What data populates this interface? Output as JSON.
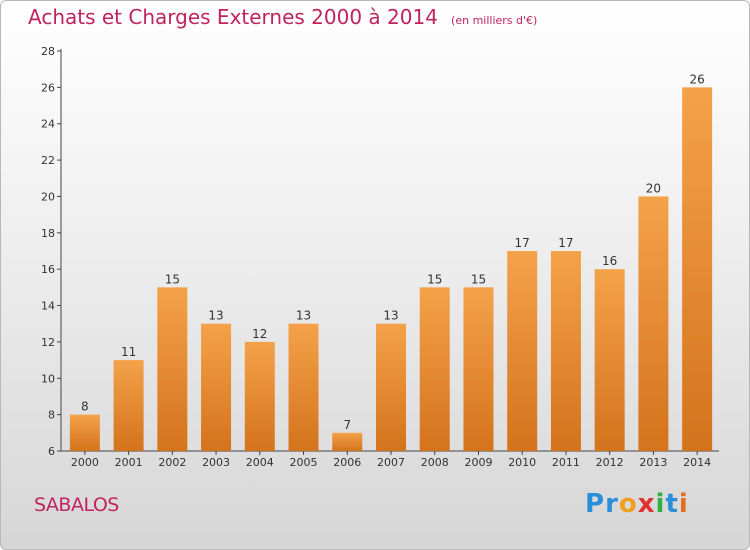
{
  "title": "Achats et Charges Externes 2000 à 2014",
  "subtitle": "(en milliers d'€)",
  "town": "SABALOS",
  "logo": {
    "letters": [
      "P",
      "r",
      "o",
      "x",
      "i",
      "t",
      "i"
    ],
    "colors": [
      "#2a8fd8",
      "#2a8fd8",
      "#f0a020",
      "#e03030",
      "#30b040",
      "#2a8fd8",
      "#e07020"
    ]
  },
  "colors": {
    "bar_top": "#f4a24a",
    "bar_bottom": "#d4731c",
    "title": "#c0245c"
  },
  "chart_data": {
    "type": "bar",
    "title": "Achats et Charges Externes 2000 à 2014",
    "subtitle": "(en milliers d'€)",
    "xlabel": "",
    "ylabel": "",
    "categories": [
      "2000",
      "2001",
      "2002",
      "2003",
      "2004",
      "2005",
      "2006",
      "2007",
      "2008",
      "2009",
      "2010",
      "2011",
      "2012",
      "2013",
      "2014"
    ],
    "values": [
      8,
      11,
      15,
      13,
      12,
      13,
      7,
      13,
      15,
      15,
      17,
      17,
      16,
      20,
      26
    ],
    "ylim": [
      6,
      28
    ],
    "yticks": [
      6,
      8,
      10,
      12,
      14,
      16,
      18,
      20,
      22,
      24,
      26,
      28
    ],
    "grid": false,
    "legend": "none"
  }
}
